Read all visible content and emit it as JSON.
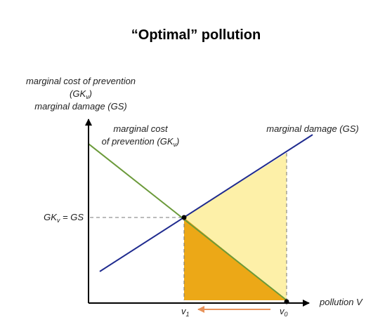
{
  "title": "“Optimal” pollution",
  "y_axis_label": {
    "line1": "marginal cost of prevention",
    "line2": {
      "pre": "(GK",
      "sub": "v",
      "post": ")"
    },
    "line3": "marginal damage (GS)"
  },
  "curves": {
    "prevention": {
      "line1": "marginal cost",
      "line2": {
        "pre": "of prevention (GK",
        "sub": "v",
        "post": ")"
      }
    },
    "damage": "marginal damage (GS)"
  },
  "equilibrium_label": {
    "pre": "GK",
    "sub": "v",
    "post": " = GS"
  },
  "x_axis": {
    "v1": {
      "pre": "v",
      "sub": "1"
    },
    "v0": {
      "pre": "v",
      "sub": "0"
    },
    "label": "pollution V"
  }
}
